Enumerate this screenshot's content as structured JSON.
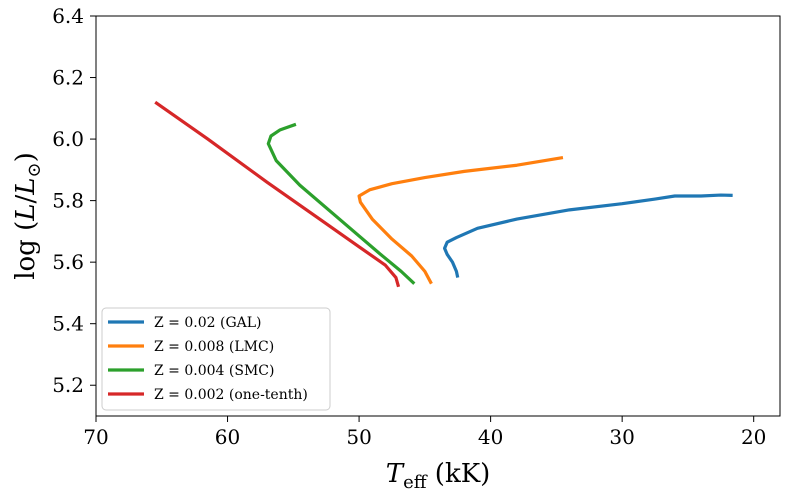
{
  "chart_data": {
    "type": "line",
    "xlabel": "T_eff (kK)",
    "ylabel": "log (L/L_⊙)",
    "xlim": [
      70,
      18
    ],
    "ylim": [
      5.1,
      6.4
    ],
    "x_ticks": [
      "70",
      "60",
      "50",
      "40",
      "30",
      "20"
    ],
    "y_ticks": [
      "5.2",
      "5.4",
      "5.6",
      "5.8",
      "6.0",
      "6.2",
      "6.4"
    ],
    "legend_position": "lower-left",
    "series": [
      {
        "name": "Z = 0.02 (GAL)",
        "color": "#1f77b4",
        "points": [
          [
            42.5,
            5.55
          ],
          [
            42.6,
            5.57
          ],
          [
            42.9,
            5.6
          ],
          [
            43.3,
            5.625
          ],
          [
            43.5,
            5.645
          ],
          [
            43.3,
            5.665
          ],
          [
            42.6,
            5.68
          ],
          [
            41.0,
            5.71
          ],
          [
            38.0,
            5.74
          ],
          [
            34.0,
            5.77
          ],
          [
            30.0,
            5.79
          ],
          [
            27.5,
            5.805
          ],
          [
            26.0,
            5.815
          ],
          [
            24.0,
            5.815
          ],
          [
            22.5,
            5.818
          ],
          [
            21.6,
            5.817
          ]
        ]
      },
      {
        "name": "Z = 0.008 (LMC)",
        "color": "#ff7f0e",
        "points": [
          [
            44.5,
            5.53
          ],
          [
            45.0,
            5.57
          ],
          [
            46.0,
            5.62
          ],
          [
            47.5,
            5.675
          ],
          [
            49.0,
            5.74
          ],
          [
            49.9,
            5.795
          ],
          [
            50.0,
            5.815
          ],
          [
            49.2,
            5.835
          ],
          [
            47.5,
            5.855
          ],
          [
            45.0,
            5.875
          ],
          [
            42.0,
            5.895
          ],
          [
            38.0,
            5.915
          ],
          [
            34.5,
            5.94
          ]
        ]
      },
      {
        "name": "Z = 0.004 (SMC)",
        "color": "#2ca02c",
        "points": [
          [
            45.8,
            5.53
          ],
          [
            46.8,
            5.57
          ],
          [
            48.5,
            5.63
          ],
          [
            51.5,
            5.74
          ],
          [
            54.5,
            5.85
          ],
          [
            56.3,
            5.93
          ],
          [
            56.9,
            5.985
          ],
          [
            56.7,
            6.01
          ],
          [
            56.0,
            6.03
          ],
          [
            54.8,
            6.048
          ]
        ]
      },
      {
        "name": "Z = 0.002 (one-tenth)",
        "color": "#d62728",
        "points": [
          [
            47.0,
            5.52
          ],
          [
            47.2,
            5.55
          ],
          [
            48.0,
            5.59
          ],
          [
            50.0,
            5.65
          ],
          [
            53.0,
            5.74
          ],
          [
            57.0,
            5.86
          ],
          [
            61.5,
            6.0
          ],
          [
            65.5,
            6.12
          ]
        ]
      }
    ]
  }
}
